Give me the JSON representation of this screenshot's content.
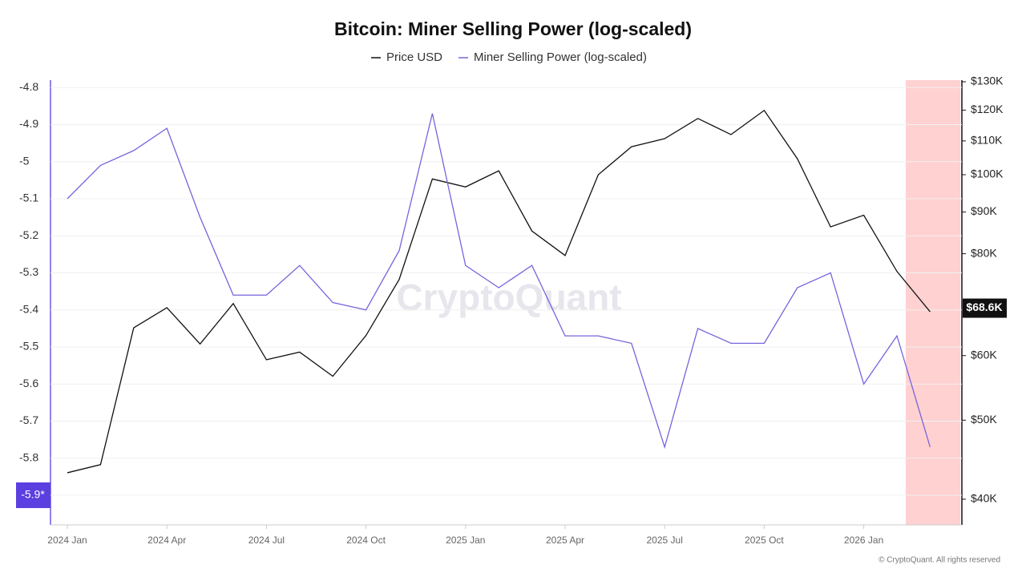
{
  "chart_data": {
    "type": "line",
    "title": "Bitcoin: Miner Selling Power (log-scaled)",
    "watermark": "CryptoQuant",
    "footer": "© CryptoQuant. All rights reserved",
    "x": [
      "2024-01",
      "2024-02",
      "2024-03",
      "2024-04",
      "2024-05",
      "2024-06",
      "2024-07",
      "2024-08",
      "2024-09",
      "2024-10",
      "2024-11",
      "2024-12",
      "2025-01",
      "2025-02",
      "2025-03",
      "2025-04",
      "2025-05",
      "2025-06",
      "2025-07",
      "2025-08",
      "2025-09",
      "2025-10",
      "2025-11",
      "2025-12",
      "2026-01",
      "2026-02",
      "2026-03"
    ],
    "xticks": [
      {
        "value": "2024-01",
        "label": "2024 Jan"
      },
      {
        "value": "2024-04",
        "label": "2024 Apr"
      },
      {
        "value": "2024-07",
        "label": "2024 Jul"
      },
      {
        "value": "2024-10",
        "label": "2024 Oct"
      },
      {
        "value": "2025-01",
        "label": "2025 Jan"
      },
      {
        "value": "2025-04",
        "label": "2025 Apr"
      },
      {
        "value": "2025-07",
        "label": "2025 Jul"
      },
      {
        "value": "2025-10",
        "label": "2025 Oct"
      },
      {
        "value": "2026-01",
        "label": "2026 Jan"
      }
    ],
    "series": [
      {
        "name": "Price USD",
        "color": "#111111",
        "axis": "y2",
        "values": [
          43100,
          44100,
          64900,
          68700,
          62000,
          69500,
          59300,
          60600,
          56600,
          63500,
          74400,
          98800,
          96600,
          101100,
          85300,
          79600,
          100000,
          108200,
          110700,
          117200,
          112000,
          119900,
          104600,
          86300,
          89200,
          76100,
          67900
        ],
        "end_label": {
          "value": 68600,
          "label": "$68.6K"
        }
      },
      {
        "name": "Miner Selling Power (log-scaled)",
        "color": "#7465dc",
        "values": [
          -5.1,
          -5.01,
          -4.97,
          -4.91,
          -5.15,
          -5.36,
          -5.36,
          -5.28,
          -5.38,
          -5.4,
          -5.24,
          -4.87,
          -5.28,
          -5.34,
          -5.28,
          -5.47,
          -5.47,
          -5.49,
          -5.77,
          -5.45,
          -5.49,
          -5.49,
          -5.34,
          -5.3,
          -5.6,
          -5.47,
          -5.77
        ],
        "end_label": {
          "value": -5.9,
          "label": "-5.9*"
        }
      }
    ],
    "ylim": [
      -5.98,
      -4.78
    ],
    "yticks": [
      -4.8,
      -4.9,
      -5,
      -5.1,
      -5.2,
      -5.3,
      -5.4,
      -5.5,
      -5.6,
      -5.7,
      -5.8,
      -5.9
    ],
    "y2lim": [
      37200,
      130600
    ],
    "y2log": true,
    "y2ticks": [
      {
        "value": 40000,
        "label": "$40K"
      },
      {
        "value": 50000,
        "label": "$50K"
      },
      {
        "value": 60000,
        "label": "$60K"
      },
      {
        "value": 80000,
        "label": "$80K"
      },
      {
        "value": 90000,
        "label": "$90K"
      },
      {
        "value": 100000,
        "label": "$100K"
      },
      {
        "value": 110000,
        "label": "$110K"
      },
      {
        "value": 120000,
        "label": "$120K"
      },
      {
        "value": 130000,
        "label": "$130K"
      }
    ],
    "grid": true
  }
}
